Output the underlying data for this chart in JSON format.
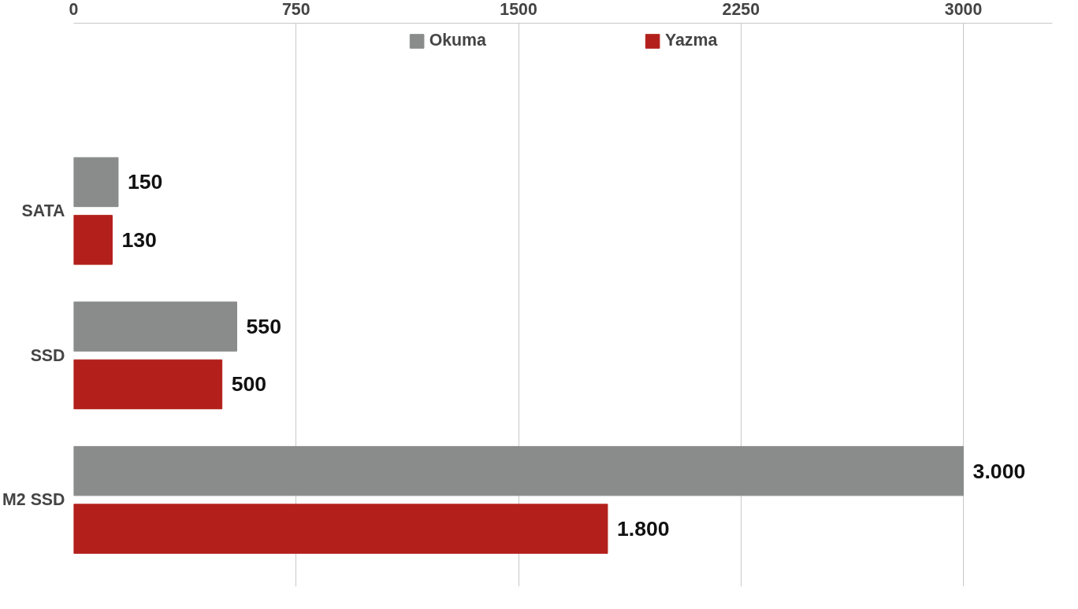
{
  "chart_data": {
    "type": "bar",
    "orientation": "horizontal",
    "categories": [
      "SATA",
      "SSD",
      "M2 SSD"
    ],
    "series": [
      {
        "name": "Okuma",
        "color": "#8a8c8c",
        "values": [
          150,
          550,
          3000
        ],
        "value_labels": [
          "150",
          "550",
          "3.000"
        ]
      },
      {
        "name": "Yazma",
        "color": "#b3201c",
        "values": [
          130,
          500,
          1800
        ],
        "value_labels": [
          "130",
          "500",
          "1.800"
        ]
      }
    ],
    "xlim": [
      0,
      3300
    ],
    "xticks": [
      0,
      750,
      1500,
      2250,
      3000
    ],
    "grid": "x",
    "legend": "top"
  }
}
